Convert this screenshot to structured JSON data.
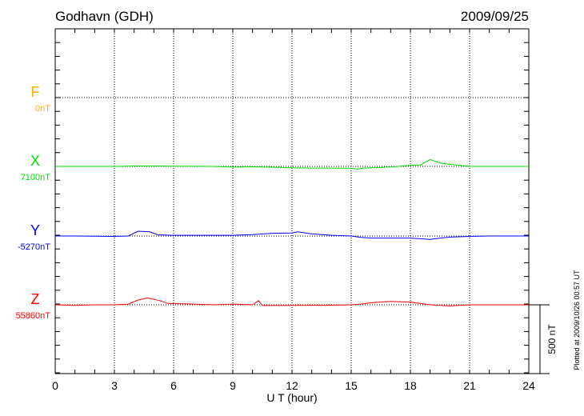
{
  "chart_data": {
    "type": "line",
    "title": "Godhavn (GDH)",
    "date": "2009/09/25",
    "xlabel": "U T (hour)",
    "xlim": [
      0,
      24
    ],
    "xticks": [
      0,
      3,
      6,
      9,
      12,
      15,
      18,
      21,
      24
    ],
    "scale_bar_label": "500 nT",
    "scale_bar_nT": 500,
    "grid": true,
    "plotted_note": "Plotted at 2009/10/26 00:57 UT",
    "series": [
      {
        "name": "F",
        "baseline_label": "0nT",
        "color": "#ffb000",
        "x": [],
        "y": []
      },
      {
        "name": "X",
        "baseline_label": "7100nT",
        "color": "#00e000",
        "x": [
          0,
          1,
          2,
          3,
          3.5,
          4,
          5,
          6,
          7,
          8,
          9,
          10,
          11,
          12,
          13,
          14,
          15,
          15.3,
          15.6,
          16,
          17,
          18,
          18.5,
          19,
          19.5,
          20,
          21,
          22,
          24
        ],
        "y": [
          0,
          0,
          0,
          0,
          1,
          3,
          3,
          2,
          1,
          0,
          -5,
          -3,
          -6,
          -10,
          -12,
          -12,
          -14,
          -20,
          -12,
          -10,
          -4,
          8,
          10,
          50,
          25,
          15,
          0,
          0,
          0
        ]
      },
      {
        "name": "Y",
        "baseline_label": "-5270nT",
        "color": "#0000ff",
        "x": [
          0,
          1,
          2,
          3,
          3.7,
          4.2,
          4.8,
          5.2,
          6,
          7,
          8,
          9,
          10,
          11,
          12,
          12.3,
          13,
          14,
          15,
          15.5,
          16,
          17,
          18,
          19,
          19.5,
          20,
          21,
          22,
          24
        ],
        "y": [
          0,
          0,
          -2,
          -3,
          0,
          35,
          30,
          8,
          5,
          5,
          5,
          5,
          10,
          20,
          22,
          30,
          15,
          5,
          0,
          -10,
          -15,
          -15,
          -15,
          -25,
          -15,
          -8,
          -3,
          0,
          0
        ]
      },
      {
        "name": "Z",
        "baseline_label": "55860nT",
        "color": "#ff0000",
        "x": [
          0,
          1,
          2,
          3,
          3.7,
          4.2,
          4.7,
          5.3,
          5.7,
          7,
          8,
          9,
          10,
          10.3,
          10.5,
          11,
          14,
          15,
          15.5,
          16,
          17,
          18,
          19,
          20,
          21,
          24
        ],
        "y": [
          0,
          -4,
          0,
          0,
          5,
          35,
          50,
          30,
          10,
          5,
          0,
          5,
          0,
          30,
          -5,
          -5,
          -3,
          0,
          5,
          15,
          25,
          20,
          0,
          -8,
          0,
          0
        ]
      }
    ]
  }
}
